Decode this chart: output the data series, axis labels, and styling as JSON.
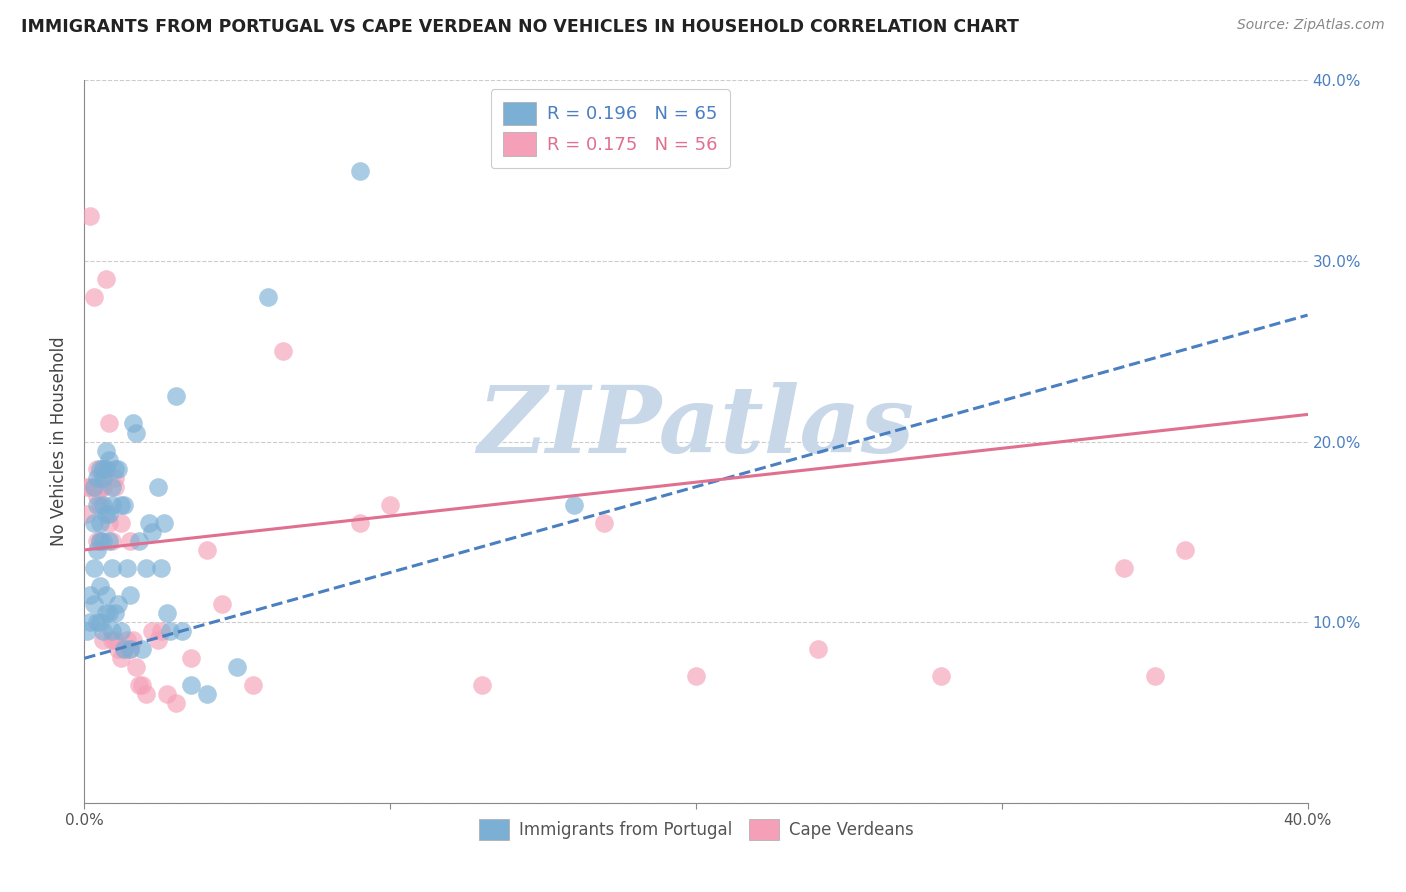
{
  "title": "IMMIGRANTS FROM PORTUGAL VS CAPE VERDEAN NO VEHICLES IN HOUSEHOLD CORRELATION CHART",
  "source": "Source: ZipAtlas.com",
  "ylabel": "No Vehicles in Household",
  "xlim": [
    0.0,
    0.4
  ],
  "ylim": [
    0.0,
    0.4
  ],
  "xticks": [
    0.0,
    0.1,
    0.2,
    0.3,
    0.4
  ],
  "yticks": [
    0.0,
    0.1,
    0.2,
    0.3,
    0.4
  ],
  "xtick_labels": [
    "0.0%",
    "",
    "",
    "",
    "40.0%"
  ],
  "ytick_labels_right": [
    "",
    "10.0%",
    "20.0%",
    "30.0%",
    "40.0%"
  ],
  "legend_entry1_label": "R = 0.196   N = 65",
  "legend_entry2_label": "R = 0.175   N = 56",
  "legend_entry1_color": "#7bafd4",
  "legend_entry2_color": "#f4a0b8",
  "legend_text1_color": "#4a7fc1",
  "legend_text2_color": "#e07090",
  "series1_color": "#7bafd4",
  "series2_color": "#f4a0b8",
  "trendline1_color": "#4a7fc1",
  "trendline2_color": "#e07090",
  "trendline1_style": "--",
  "trendline2_style": "-",
  "trendline1_start_y": 0.08,
  "trendline1_end_y": 0.27,
  "trendline2_start_y": 0.14,
  "trendline2_end_y": 0.215,
  "watermark_text": "ZIPatlas",
  "watermark_color": "#c8d8e8",
  "grid_color": "#cccccc",
  "scatter1_x": [
    0.001,
    0.002,
    0.002,
    0.003,
    0.003,
    0.003,
    0.003,
    0.004,
    0.004,
    0.004,
    0.004,
    0.005,
    0.005,
    0.005,
    0.005,
    0.005,
    0.006,
    0.006,
    0.006,
    0.006,
    0.006,
    0.007,
    0.007,
    0.007,
    0.007,
    0.007,
    0.008,
    0.008,
    0.008,
    0.008,
    0.009,
    0.009,
    0.009,
    0.009,
    0.01,
    0.01,
    0.011,
    0.011,
    0.012,
    0.012,
    0.013,
    0.013,
    0.014,
    0.015,
    0.015,
    0.016,
    0.017,
    0.018,
    0.019,
    0.02,
    0.021,
    0.022,
    0.024,
    0.025,
    0.026,
    0.027,
    0.028,
    0.03,
    0.032,
    0.035,
    0.04,
    0.05,
    0.06,
    0.09,
    0.16
  ],
  "scatter1_y": [
    0.095,
    0.115,
    0.1,
    0.175,
    0.155,
    0.13,
    0.11,
    0.18,
    0.165,
    0.14,
    0.1,
    0.185,
    0.155,
    0.145,
    0.12,
    0.1,
    0.185,
    0.18,
    0.165,
    0.145,
    0.095,
    0.195,
    0.185,
    0.16,
    0.115,
    0.105,
    0.19,
    0.16,
    0.145,
    0.105,
    0.175,
    0.165,
    0.13,
    0.095,
    0.185,
    0.105,
    0.185,
    0.11,
    0.165,
    0.095,
    0.165,
    0.085,
    0.13,
    0.115,
    0.085,
    0.21,
    0.205,
    0.145,
    0.085,
    0.13,
    0.155,
    0.15,
    0.175,
    0.13,
    0.155,
    0.105,
    0.095,
    0.225,
    0.095,
    0.065,
    0.06,
    0.075,
    0.28,
    0.35,
    0.165
  ],
  "scatter2_x": [
    0.001,
    0.001,
    0.002,
    0.002,
    0.003,
    0.003,
    0.004,
    0.004,
    0.004,
    0.005,
    0.005,
    0.005,
    0.006,
    0.006,
    0.006,
    0.007,
    0.007,
    0.008,
    0.008,
    0.009,
    0.009,
    0.01,
    0.01,
    0.01,
    0.011,
    0.012,
    0.012,
    0.013,
    0.014,
    0.015,
    0.015,
    0.016,
    0.017,
    0.018,
    0.019,
    0.02,
    0.022,
    0.024,
    0.025,
    0.027,
    0.03,
    0.035,
    0.04,
    0.045,
    0.055,
    0.065,
    0.09,
    0.1,
    0.13,
    0.17,
    0.2,
    0.24,
    0.28,
    0.34,
    0.35,
    0.36
  ],
  "scatter2_y": [
    0.175,
    0.16,
    0.325,
    0.175,
    0.28,
    0.175,
    0.185,
    0.17,
    0.145,
    0.175,
    0.165,
    0.145,
    0.185,
    0.175,
    0.09,
    0.29,
    0.185,
    0.21,
    0.155,
    0.145,
    0.09,
    0.18,
    0.175,
    0.09,
    0.085,
    0.155,
    0.08,
    0.085,
    0.09,
    0.145,
    0.085,
    0.09,
    0.075,
    0.065,
    0.065,
    0.06,
    0.095,
    0.09,
    0.095,
    0.06,
    0.055,
    0.08,
    0.14,
    0.11,
    0.065,
    0.25,
    0.155,
    0.165,
    0.065,
    0.155,
    0.07,
    0.085,
    0.07,
    0.13,
    0.07,
    0.14
  ]
}
